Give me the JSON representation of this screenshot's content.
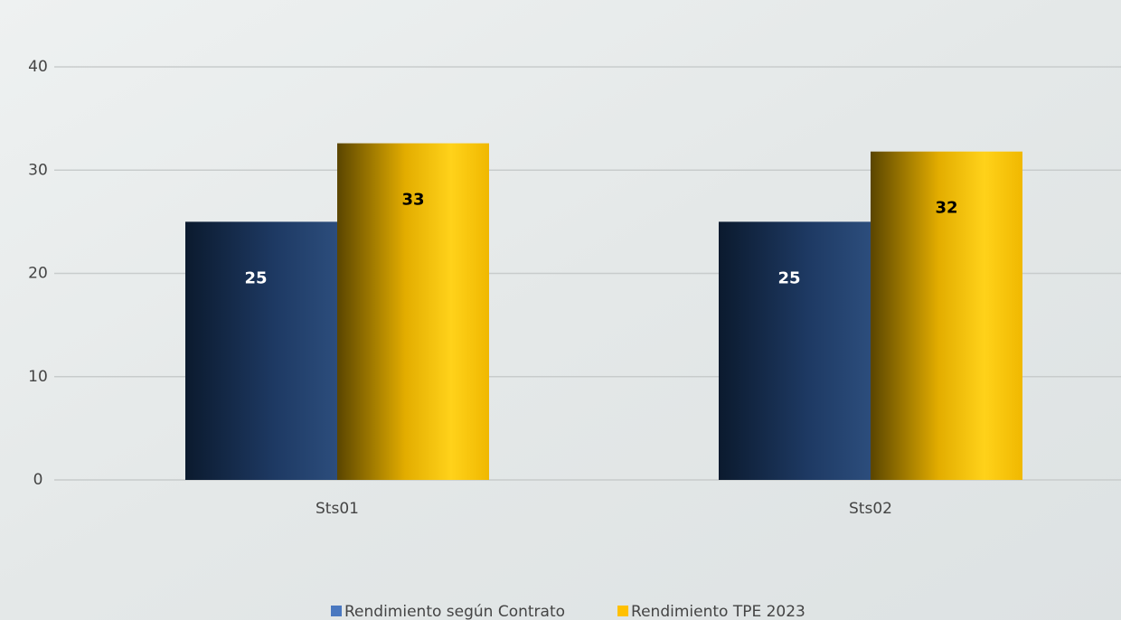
{
  "chart_data": {
    "type": "bar",
    "categories": [
      "Sts01",
      "Sts02"
    ],
    "series": [
      {
        "name": "Rendimiento según Contrato",
        "color": "#4a78c0",
        "values": [
          25,
          25
        ],
        "value_labels": [
          "25",
          "25"
        ]
      },
      {
        "name": "Rendimiento TPE 2023",
        "color": "#ffc000",
        "values": [
          32.6,
          31.8
        ],
        "value_labels": [
          "33",
          "32"
        ]
      }
    ],
    "ylim": [
      0,
      40
    ],
    "yticks": [
      0,
      10,
      20,
      30,
      40
    ],
    "grid": true
  }
}
